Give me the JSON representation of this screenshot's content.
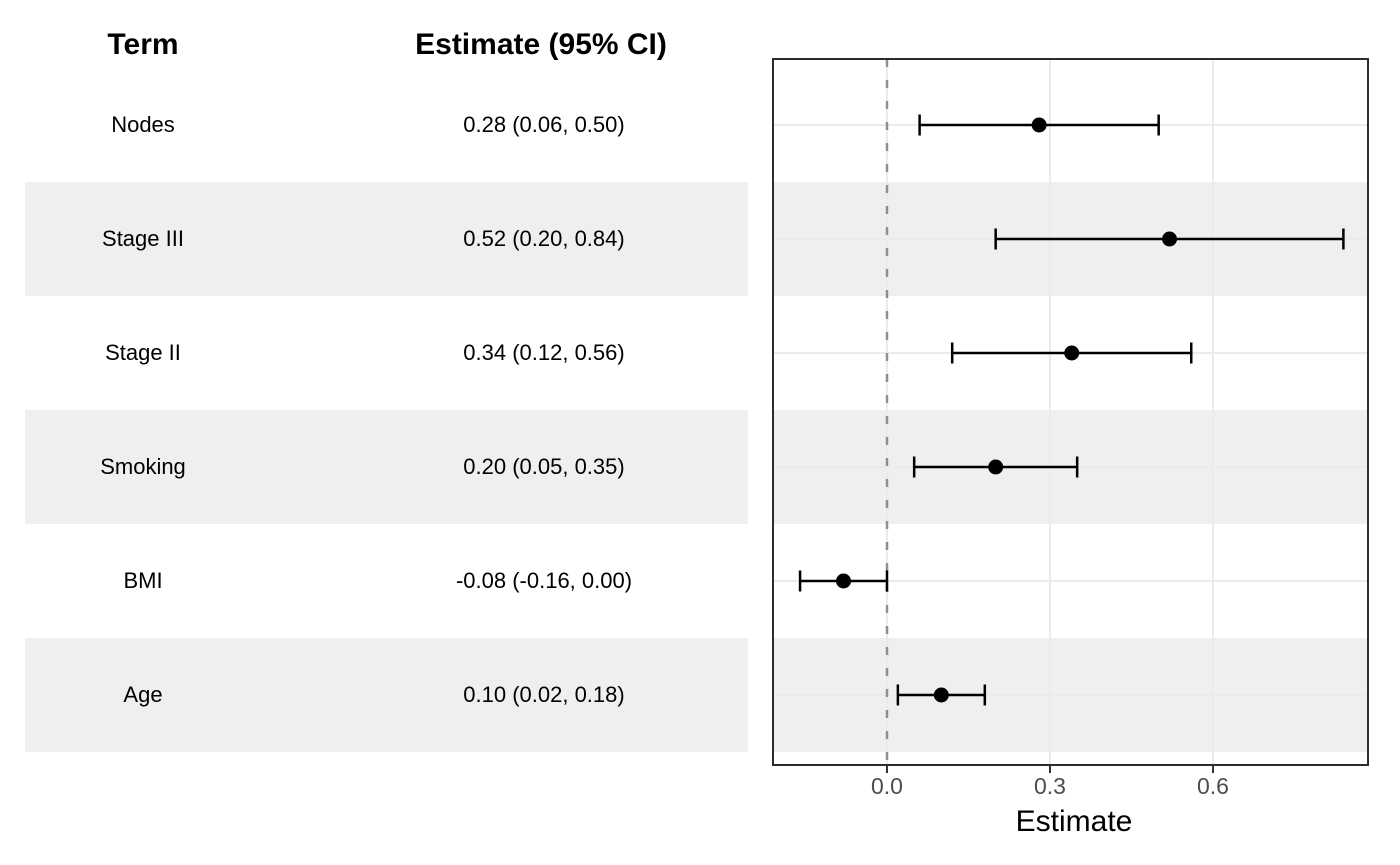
{
  "table": {
    "term_header": "Term",
    "estimate_header": "Estimate (95% CI)",
    "rows": [
      {
        "term": "Nodes",
        "estimate_label": "0.28 (0.06, 0.50)"
      },
      {
        "term": "Stage III",
        "estimate_label": "0.52 (0.20, 0.84)"
      },
      {
        "term": "Stage II",
        "estimate_label": "0.34 (0.12, 0.56)"
      },
      {
        "term": "Smoking",
        "estimate_label": "0.20 (0.05, 0.35)"
      },
      {
        "term": "BMI",
        "estimate_label": "-0.08 (-0.16, 0.00)"
      },
      {
        "term": "Age",
        "estimate_label": "0.10 (0.02, 0.18)"
      }
    ]
  },
  "chart_data": {
    "type": "scatter",
    "subtype": "forest-plot-horizontal-ci",
    "title": "",
    "xlabel": "Estimate",
    "ylabel": "",
    "x_ticks": [
      0.0,
      0.3,
      0.6
    ],
    "x_tick_labels": [
      "0.0",
      "0.3",
      "0.6"
    ],
    "xlim": [
      -0.21,
      0.89
    ],
    "reference_line_x": 0.0,
    "reference_line_style": "dashed",
    "grid": "on",
    "legend": "none",
    "categories": [
      "Nodes",
      "Stage III",
      "Stage II",
      "Smoking",
      "BMI",
      "Age"
    ],
    "rows": [
      {
        "term": "Nodes",
        "estimate": 0.28,
        "ci_low": 0.06,
        "ci_high": 0.5
      },
      {
        "term": "Stage III",
        "estimate": 0.52,
        "ci_low": 0.2,
        "ci_high": 0.84
      },
      {
        "term": "Stage II",
        "estimate": 0.34,
        "ci_low": 0.12,
        "ci_high": 0.56
      },
      {
        "term": "Smoking",
        "estimate": 0.2,
        "ci_low": 0.05,
        "ci_high": 0.35
      },
      {
        "term": "BMI",
        "estimate": -0.08,
        "ci_low": -0.16,
        "ci_high": 0.0
      },
      {
        "term": "Age",
        "estimate": 0.1,
        "ci_low": 0.02,
        "ci_high": 0.18
      }
    ]
  },
  "style": {
    "band_color": "#efefef",
    "grid_color": "#ebebeb",
    "panel_border_color": "#2d2d2d",
    "reference_line_color": "#8f8f8f",
    "point_color": "#000000",
    "errorbar_color": "#000000",
    "tick_color": "#333333",
    "tick_label_color": "#4d4d4d",
    "text_color": "#000000"
  }
}
